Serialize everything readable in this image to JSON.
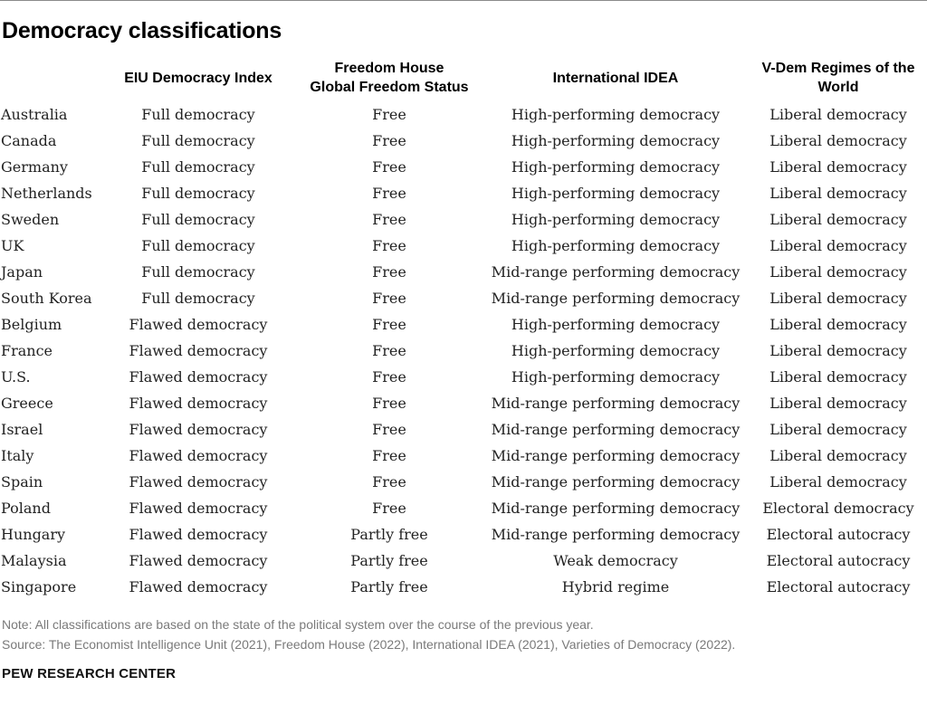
{
  "title": "Democracy classifications",
  "columns": {
    "eiu": "EIU Democracy Index",
    "fh_line1": "Freedom House",
    "fh_line2": "Global Freedom Status",
    "idea": "International IDEA",
    "vdem_line1": "V-Dem Regimes of the",
    "vdem_line2": "World"
  },
  "rows": [
    {
      "country": "Australia",
      "eiu": "Full democracy",
      "fh": "Free",
      "idea": "High-performing democracy",
      "vdem": "Liberal democracy"
    },
    {
      "country": "Canada",
      "eiu": "Full democracy",
      "fh": "Free",
      "idea": "High-performing democracy",
      "vdem": "Liberal democracy"
    },
    {
      "country": "Germany",
      "eiu": "Full democracy",
      "fh": "Free",
      "idea": "High-performing democracy",
      "vdem": "Liberal democracy"
    },
    {
      "country": "Netherlands",
      "eiu": "Full democracy",
      "fh": "Free",
      "idea": "High-performing democracy",
      "vdem": "Liberal democracy"
    },
    {
      "country": "Sweden",
      "eiu": "Full democracy",
      "fh": "Free",
      "idea": "High-performing democracy",
      "vdem": "Liberal democracy"
    },
    {
      "country": "UK",
      "eiu": "Full democracy",
      "fh": "Free",
      "idea": "High-performing democracy",
      "vdem": "Liberal democracy"
    },
    {
      "country": "Japan",
      "eiu": "Full democracy",
      "fh": "Free",
      "idea": "Mid-range performing democracy",
      "vdem": "Liberal democracy"
    },
    {
      "country": "South Korea",
      "eiu": "Full democracy",
      "fh": "Free",
      "idea": "Mid-range performing democracy",
      "vdem": "Liberal democracy"
    },
    {
      "country": "Belgium",
      "eiu": "Flawed democracy",
      "fh": "Free",
      "idea": "High-performing democracy",
      "vdem": "Liberal democracy"
    },
    {
      "country": "France",
      "eiu": "Flawed democracy",
      "fh": "Free",
      "idea": "High-performing democracy",
      "vdem": "Liberal democracy"
    },
    {
      "country": "U.S.",
      "eiu": "Flawed democracy",
      "fh": "Free",
      "idea": "High-performing democracy",
      "vdem": "Liberal democracy"
    },
    {
      "country": "Greece",
      "eiu": "Flawed democracy",
      "fh": "Free",
      "idea": "Mid-range performing democracy",
      "vdem": "Liberal democracy"
    },
    {
      "country": "Israel",
      "eiu": "Flawed democracy",
      "fh": "Free",
      "idea": "Mid-range performing democracy",
      "vdem": "Liberal democracy"
    },
    {
      "country": "Italy",
      "eiu": "Flawed democracy",
      "fh": "Free",
      "idea": "Mid-range performing democracy",
      "vdem": "Liberal democracy"
    },
    {
      "country": "Spain",
      "eiu": "Flawed democracy",
      "fh": "Free",
      "idea": "Mid-range performing democracy",
      "vdem": "Liberal democracy"
    },
    {
      "country": "Poland",
      "eiu": "Flawed democracy",
      "fh": "Free",
      "idea": "Mid-range performing democracy",
      "vdem": "Electoral democracy"
    },
    {
      "country": "Hungary",
      "eiu": "Flawed democracy",
      "fh": "Partly free",
      "idea": "Mid-range performing democracy",
      "vdem": "Electoral autocracy"
    },
    {
      "country": "Malaysia",
      "eiu": "Flawed democracy",
      "fh": "Partly free",
      "idea": "Weak democracy",
      "vdem": "Electoral autocracy"
    },
    {
      "country": "Singapore",
      "eiu": "Flawed democracy",
      "fh": "Partly free",
      "idea": "Hybrid regime",
      "vdem": "Electoral autocracy"
    }
  ],
  "note": "Note: All classifications are based on the state of the political system over the course of the previous year.",
  "source": "Source: The Economist Intelligence Unit (2021), Freedom House (2022), International IDEA (2021), Varieties of Democracy (2022).",
  "footer": "PEW RESEARCH CENTER"
}
